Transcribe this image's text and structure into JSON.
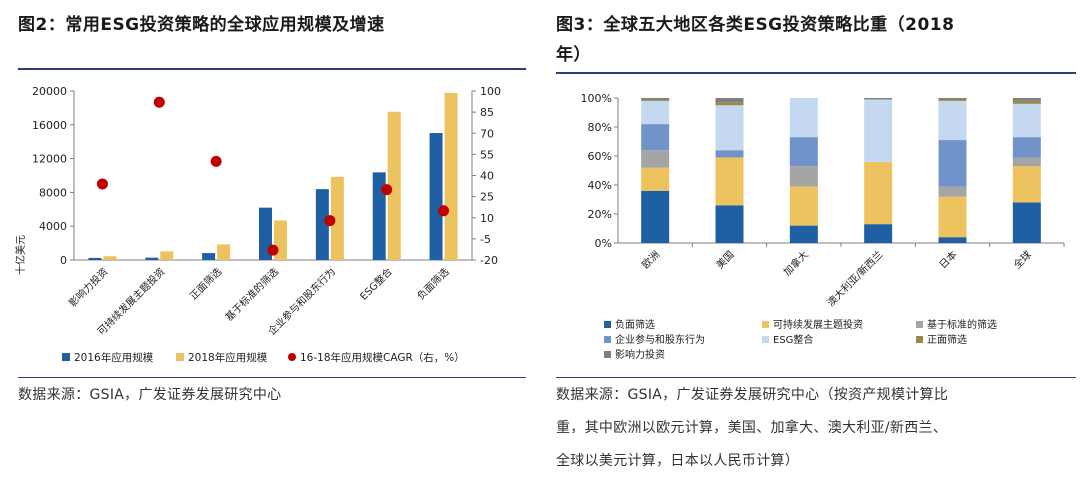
{
  "left": {
    "title": "图2：常用ESG投资策略的全球应用规模及增速",
    "source": "数据来源：GSIA，广发证券发展研究中心",
    "chart_data": {
      "type": "bar",
      "categories": [
        "影响力投资",
        "可持续发展主题投资",
        "正面筛选",
        "基于标准的筛选",
        "企业参与和股东行为",
        "ESG整合",
        "负面筛选"
      ],
      "series": [
        {
          "name": "2016年应用规模",
          "values": [
            248,
            276,
            818,
            6195,
            8385,
            10369,
            15023
          ],
          "color": "#1f5fa3",
          "axis": "left"
        },
        {
          "name": "2018年应用规模",
          "values": [
            444,
            1018,
            1842,
            4679,
            9835,
            17544,
            19771
          ],
          "color": "#ecc35e",
          "axis": "left"
        }
      ],
      "line_series": {
        "name": "16-18年应用规模CAGR（右，%）",
        "values": [
          34,
          92,
          50,
          -13,
          8,
          30,
          15
        ],
        "color": "#c00000",
        "axis": "right"
      },
      "ylabel": "十亿美元",
      "yticks_left": [
        0,
        4000,
        8000,
        12000,
        16000,
        20000
      ],
      "ylim_left": [
        0,
        20000
      ],
      "yticks_right": [
        -20,
        -5,
        10,
        25,
        40,
        55,
        70,
        85,
        100
      ],
      "ylim_right": [
        -20,
        100
      ],
      "tick_labels_left": [
        "0",
        "4000",
        "8000",
        "12000",
        "16000",
        "20000"
      ],
      "tick_labels_right": [
        "-20",
        "-5",
        "10",
        "25",
        "40",
        "55",
        "70",
        "85",
        "100"
      ]
    }
  },
  "right": {
    "title_line1": "图3：全球五大地区各类ESG投资策略比重（2018",
    "title_line2": "年）",
    "source_lines": [
      "数据来源：GSIA，广发证券发展研究中心（按资产规模计算比",
      "重，其中欧洲以欧元计算，美国、加拿大、澳大利亚/新西兰、",
      "全球以美元计算，日本以人民币计算）"
    ],
    "chart_data": {
      "type": "bar",
      "stacked": true,
      "categories": [
        "欧洲",
        "美国",
        "加拿大",
        "澳大利亚/新西兰",
        "日本",
        "全球"
      ],
      "series": [
        {
          "name": "负面筛选",
          "values": [
            36,
            26,
            12,
            13,
            4,
            28
          ],
          "color": "#1f5fa3"
        },
        {
          "name": "可持续发展主题投资",
          "values": [
            16,
            33,
            27,
            43,
            28,
            25
          ],
          "color": "#ecc35e"
        },
        {
          "name": "基于标准的筛选",
          "values": [
            12,
            0,
            14,
            0,
            7,
            6
          ],
          "color": "#a5a5a5"
        },
        {
          "name": "企业参与和股东行为",
          "values": [
            18,
            5,
            20,
            0,
            32,
            14
          ],
          "color": "#7094c9"
        },
        {
          "name": "ESG整合",
          "values": [
            16,
            31,
            27,
            43,
            27,
            23
          ],
          "color": "#c5d8f1"
        },
        {
          "name": "正面筛选",
          "values": [
            1,
            2,
            0,
            0,
            1,
            2
          ],
          "color": "#968a45"
        },
        {
          "name": "影响力投资",
          "values": [
            1,
            3,
            0,
            1,
            1,
            2
          ],
          "color": "#7f7f7f"
        }
      ],
      "yticks": [
        0,
        20,
        40,
        60,
        80,
        100
      ],
      "tick_labels": [
        "0%",
        "20%",
        "40%",
        "60%",
        "80%",
        "100%"
      ],
      "ylim": [
        0,
        100
      ]
    }
  }
}
